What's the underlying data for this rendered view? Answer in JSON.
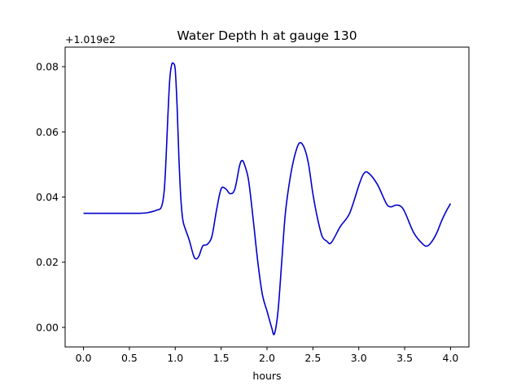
{
  "chart_data": {
    "type": "line",
    "title": "Water Depth h at gauge 130",
    "xlabel": "hours",
    "ylabel": "",
    "y_offset_label": "+1.019e2",
    "xlim": [
      -0.2,
      4.2
    ],
    "ylim": [
      -0.006,
      0.086
    ],
    "grid": false,
    "xticks": [
      0.0,
      0.5,
      1.0,
      1.5,
      2.0,
      2.5,
      3.0,
      3.5,
      4.0
    ],
    "xtick_labels": [
      "0.0",
      "0.5",
      "1.0",
      "1.5",
      "2.0",
      "2.5",
      "3.0",
      "3.5",
      "4.0"
    ],
    "yticks": [
      0.0,
      0.02,
      0.04,
      0.06,
      0.08
    ],
    "ytick_labels": [
      "0.00",
      "0.02",
      "0.04",
      "0.06",
      "0.08"
    ],
    "series": [
      {
        "color": "#0000cc",
        "x": [
          0.0,
          0.2,
          0.4,
          0.6,
          0.7,
          0.8,
          0.85,
          0.88,
          0.9,
          0.92,
          0.94,
          0.96,
          0.98,
          1.0,
          1.02,
          1.04,
          1.06,
          1.08,
          1.1,
          1.15,
          1.2,
          1.23,
          1.26,
          1.3,
          1.35,
          1.4,
          1.45,
          1.5,
          1.55,
          1.6,
          1.65,
          1.7,
          1.73,
          1.76,
          1.8,
          1.85,
          1.9,
          1.95,
          2.0,
          2.05,
          2.08,
          2.12,
          2.16,
          2.2,
          2.25,
          2.3,
          2.35,
          2.4,
          2.45,
          2.5,
          2.55,
          2.6,
          2.65,
          2.7,
          2.8,
          2.9,
          3.0,
          3.05,
          3.1,
          3.2,
          3.3,
          3.35,
          3.4,
          3.45,
          3.5,
          3.6,
          3.7,
          3.75,
          3.8,
          3.85,
          3.9,
          3.95,
          4.0
        ],
        "y": [
          0.035,
          0.035,
          0.035,
          0.035,
          0.0352,
          0.036,
          0.037,
          0.042,
          0.052,
          0.065,
          0.076,
          0.0805,
          0.081,
          0.079,
          0.068,
          0.052,
          0.04,
          0.0335,
          0.031,
          0.027,
          0.022,
          0.021,
          0.022,
          0.025,
          0.0255,
          0.028,
          0.036,
          0.0425,
          0.0425,
          0.041,
          0.0425,
          0.0495,
          0.0512,
          0.0495,
          0.045,
          0.033,
          0.02,
          0.01,
          0.005,
          0.0,
          -0.002,
          0.005,
          0.02,
          0.035,
          0.0455,
          0.0525,
          0.0565,
          0.0555,
          0.0505,
          0.041,
          0.0335,
          0.028,
          0.0265,
          0.026,
          0.031,
          0.035,
          0.0435,
          0.047,
          0.0475,
          0.044,
          0.038,
          0.037,
          0.0375,
          0.0373,
          0.0355,
          0.029,
          0.0255,
          0.025,
          0.0265,
          0.029,
          0.0325,
          0.0355,
          0.038
        ]
      }
    ]
  }
}
